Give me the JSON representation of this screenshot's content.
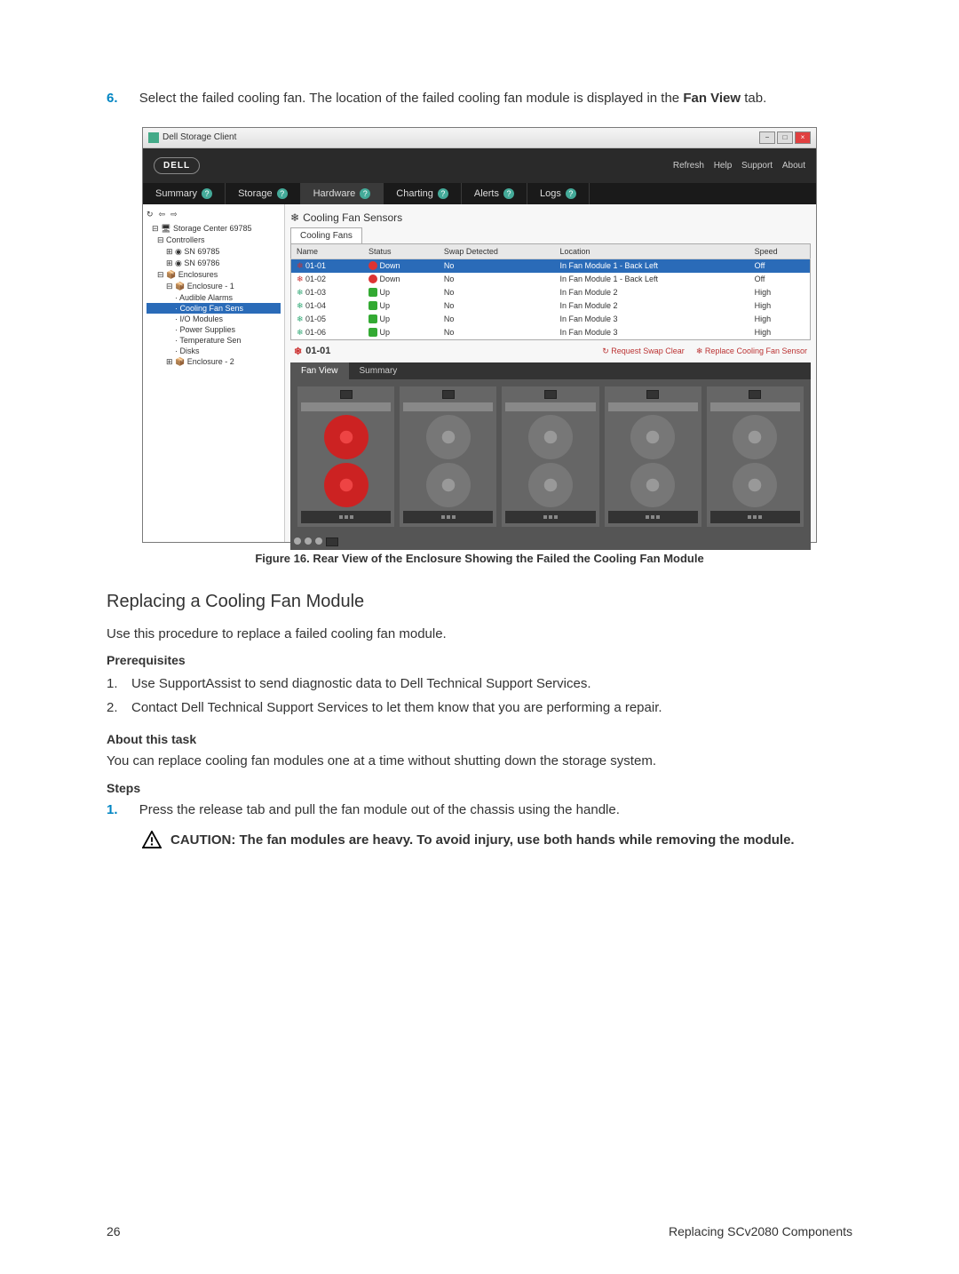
{
  "step6": {
    "num": "6.",
    "text_a": "Select the failed cooling fan. The location of the failed cooling fan module is displayed in the ",
    "text_b": "Fan View",
    "text_c": " tab."
  },
  "window": {
    "title": "Dell Storage Client",
    "brand": "DELL",
    "links": {
      "refresh": "Refresh",
      "help": "Help",
      "support": "Support",
      "about": "About"
    },
    "tabs": [
      "Summary",
      "Storage",
      "Hardware",
      "Charting",
      "Alerts",
      "Logs"
    ],
    "tabs_active_index": 2,
    "toolbar_glyphs": [
      "↻",
      "⇦",
      "⇨"
    ],
    "panel_title": "Cooling Fan Sensors",
    "panel_icon": "❄",
    "tree": {
      "root": "Storage Center 69785",
      "controllers_label": "Controllers",
      "controllers": [
        "SN 69785",
        "SN 69786"
      ],
      "enclosures_label": "Enclosures",
      "enclosure1": "Enclosure - 1",
      "enc1_items": [
        "Audible Alarms",
        "Cooling Fan Sens",
        "I/O Modules",
        "Power Supplies",
        "Temperature Sen",
        "Disks"
      ],
      "enc1_selected_index": 1,
      "enclosure2": "Enclosure - 2"
    },
    "table": {
      "tab": "Cooling Fans",
      "cols": [
        "Name",
        "Status",
        "Swap Detected",
        "Location",
        "Speed"
      ],
      "rows": [
        {
          "name": "01-01",
          "status": "Down",
          "status_kind": "down",
          "swap": "No",
          "location": "In Fan Module 1 - Back Left",
          "speed": "Off",
          "sel": true
        },
        {
          "name": "01-02",
          "status": "Down",
          "status_kind": "down",
          "swap": "No",
          "location": "In Fan Module 1 - Back Left",
          "speed": "Off"
        },
        {
          "name": "01-03",
          "status": "Up",
          "status_kind": "up",
          "swap": "No",
          "location": "In Fan Module 2",
          "speed": "High"
        },
        {
          "name": "01-04",
          "status": "Up",
          "status_kind": "up",
          "swap": "No",
          "location": "In Fan Module 2",
          "speed": "High"
        },
        {
          "name": "01-05",
          "status": "Up",
          "status_kind": "up",
          "swap": "No",
          "location": "In Fan Module 3",
          "speed": "High"
        },
        {
          "name": "01-06",
          "status": "Up",
          "status_kind": "up",
          "swap": "No",
          "location": "In Fan Module 3",
          "speed": "High"
        }
      ]
    },
    "detail": {
      "selected": "01-01",
      "icon": "❄",
      "actions": {
        "request": "Request Swap Clear",
        "replace": "Replace Cooling Fan Sensor"
      },
      "tabs": [
        "Fan View",
        "Summary"
      ],
      "tabs_active_index": 0
    }
  },
  "figure_caption": "Figure 16. Rear View of the Enclosure Showing the Failed the Cooling Fan Module",
  "section_title": "Replacing a Cooling Fan Module",
  "intro": "Use this procedure to replace a failed cooling fan module.",
  "prereq_head": "Prerequisites",
  "prereq": [
    "Use SupportAssist to send diagnostic data to Dell Technical Support Services.",
    "Contact Dell Technical Support Services to let them know that you are performing a repair."
  ],
  "about_head": "About this task",
  "about_text": "You can replace cooling fan modules one at a time without shutting down the storage system.",
  "steps_head": "Steps",
  "step1": {
    "num": "1.",
    "text": "Press the release tab and pull the fan module out of the chassis using the handle."
  },
  "caution": "CAUTION: The fan modules are heavy. To avoid injury, use both hands while removing the module.",
  "footer": {
    "page": "26",
    "section": "Replacing SCv2080 Components"
  }
}
